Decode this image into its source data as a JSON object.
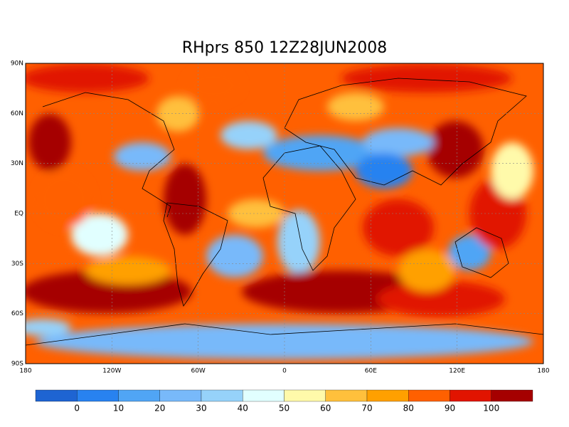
{
  "title": "RHprs 850 12Z28JUN2008",
  "lon_labels": [
    "180",
    "120W",
    "60W",
    "0",
    "60E",
    "120E",
    "180"
  ],
  "lat_labels": [
    "90N",
    "60N",
    "30N",
    "EQ",
    "30S",
    "60S",
    "90S"
  ],
  "colorbar": {
    "colors": [
      "#1e64d2",
      "#2882f0",
      "#50a5f5",
      "#78b9fa",
      "#96d2fa",
      "#e1ffff",
      "#fffaaa",
      "#ffc03c",
      "#ffa000",
      "#ff6000",
      "#e11400",
      "#a50000"
    ],
    "labels": [
      0,
      10,
      20,
      30,
      40,
      50,
      60,
      70,
      80,
      90,
      100
    ]
  }
}
